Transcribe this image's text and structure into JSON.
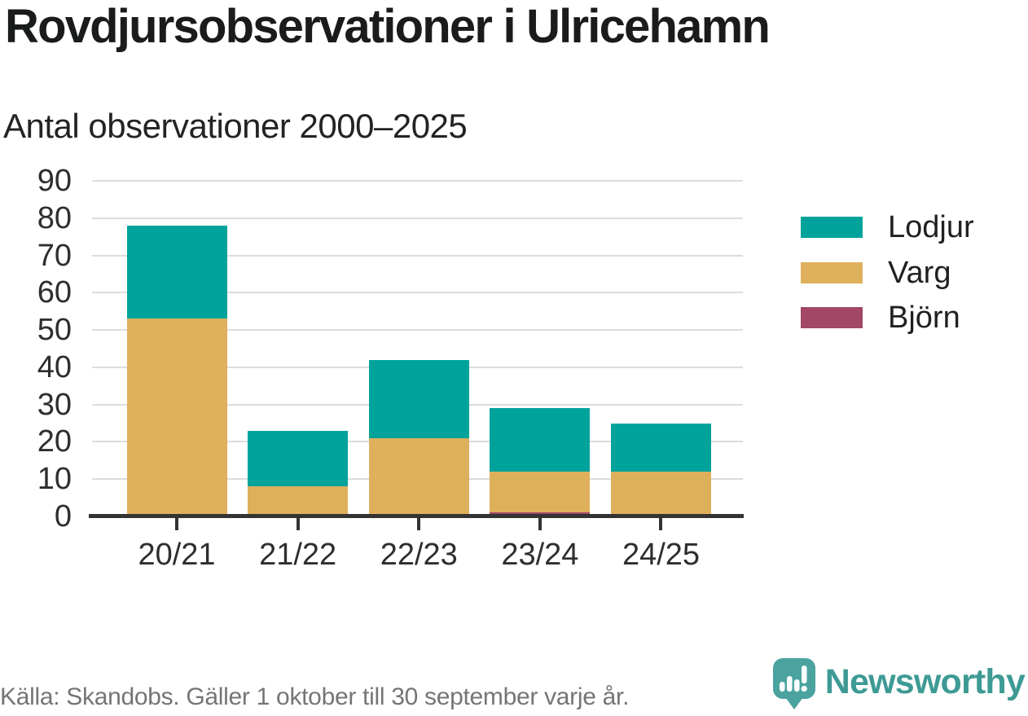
{
  "header": {
    "title": "Rovdjursobservationer i Ulricehamn",
    "subtitle": "Antal observationer 2000–2025"
  },
  "chart_data": {
    "type": "bar",
    "stacked": true,
    "title": "Rovdjursobservationer i Ulricehamn",
    "subtitle": "Antal observationer 2000–2025",
    "xlabel": "",
    "ylabel": "Antal observationer",
    "categories": [
      "20/21",
      "21/22",
      "22/23",
      "23/24",
      "24/25"
    ],
    "series": [
      {
        "name": "Björn",
        "color": "#a24765",
        "values": [
          0,
          0,
          0,
          1,
          0
        ]
      },
      {
        "name": "Varg",
        "color": "#dfb05c",
        "values": [
          53,
          8,
          21,
          11,
          12
        ]
      },
      {
        "name": "Lodjur",
        "color": "#00a39b",
        "values": [
          25,
          15,
          21,
          17,
          13
        ]
      }
    ],
    "totals": [
      78,
      23,
      42,
      29,
      25
    ],
    "ylim": [
      0,
      90
    ],
    "ytick_step": 10,
    "yticks": [
      0,
      10,
      20,
      30,
      40,
      50,
      60,
      70,
      80,
      90
    ],
    "grid": true,
    "legend_position": "right",
    "legend_order": [
      "Lodjur",
      "Varg",
      "Björn"
    ]
  },
  "footer": {
    "source": "Källa: Skandobs. Gäller 1 oktober till 30 september varje år.",
    "brand": "Newsworthy"
  },
  "colors": {
    "lodjur": "#00a39b",
    "varg": "#dfb05c",
    "bjorn": "#a24765",
    "brand_teal": "#3e9a94",
    "logo_bubble": "#4ba3a0",
    "axis": "#333333",
    "gridline": "#dcdcdc",
    "source_text": "#757575"
  }
}
